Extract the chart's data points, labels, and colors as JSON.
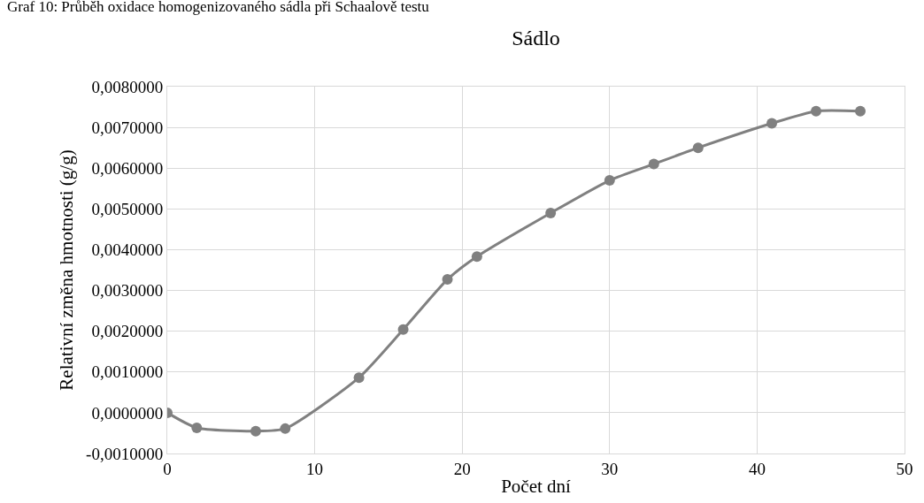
{
  "chart_data": {
    "type": "line",
    "title": "Sádlo",
    "xlabel": "Počet dní",
    "ylabel": "Relativní změna hmotnosti (g/g)",
    "annotations": [
      "Graf 10: Průběh oxidace homogenizovaného sádla při Schaalově testu"
    ],
    "x": [
      0,
      2,
      6,
      8,
      13,
      16,
      19,
      21,
      26,
      30,
      33,
      36,
      41,
      44,
      47
    ],
    "series": [
      {
        "color": "#808080",
        "values": [
          0.0,
          -0.00037,
          -0.00045,
          -0.00039,
          0.00086,
          0.00204,
          0.00327,
          0.00383,
          0.0049,
          0.0057,
          0.0061,
          0.0065,
          0.0071,
          0.0074,
          0.0074
        ]
      }
    ],
    "xlim": [
      0,
      50
    ],
    "xticks": [
      0,
      10,
      20,
      30,
      40,
      50
    ],
    "ylim": [
      -0.001,
      0.008
    ],
    "yticks": [
      {
        "value": -0.001,
        "label": "-0,0010000"
      },
      {
        "value": 0,
        "label": "0,0000000"
      },
      {
        "value": 0.001,
        "label": "0,0010000"
      },
      {
        "value": 0.002,
        "label": "0,0020000"
      },
      {
        "value": 0.003,
        "label": "0,0030000"
      },
      {
        "value": 0.004,
        "label": "0,0040000"
      },
      {
        "value": 0.005,
        "label": "0,0050000"
      },
      {
        "value": 0.006,
        "label": "0,0060000"
      },
      {
        "value": 0.007,
        "label": "0,0070000"
      },
      {
        "value": 0.008,
        "label": "0,0080000"
      }
    ],
    "grid": true,
    "marker": "circle",
    "line_style": "solid"
  }
}
